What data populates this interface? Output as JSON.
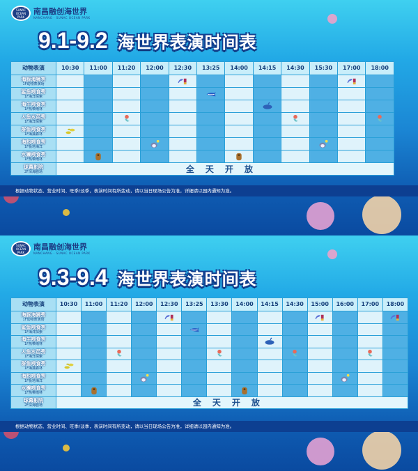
{
  "logo": {
    "cn": "南昌融创海世界",
    "en": "NANCHANG · SUNAC OCEAN PARK",
    "badge": "SUNAC OCEAN PARK"
  },
  "colors": {
    "cell_light": "#dff3fb",
    "cell_blue": "#4fb0e4",
    "title_outline": "#123f8f"
  },
  "header_label": "动物表演",
  "all_day": "全天开放",
  "notice": "根据动物状态、营业时间、旺季/淡季，表演时间有所变动，请以当日现场公告为准，详细请以园内通知为准。",
  "rows": [
    {
      "name": "海豚海狮秀",
      "loc": "1F动物表演场",
      "icon": "dolphin-sealion-icon"
    },
    {
      "name": "鲨鱼喂食秀",
      "loc": "1F海洋探索",
      "icon": "shark-icon"
    },
    {
      "name": "海牛喂食秀",
      "loc": "1F热带雨林",
      "icon": "manatee-icon"
    },
    {
      "name": "人鱼水芭秀",
      "loc": "1F海洋探索",
      "icon": "mermaid-icon"
    },
    {
      "name": "群鱼喂食秀",
      "loc": "1F海藻森林",
      "icon": "fish-school-icon"
    },
    {
      "name": "海豹喂食秀",
      "loc": "1F极地海洋",
      "icon": "seal-icon"
    },
    {
      "name": "水獭喂食秀",
      "loc": "1F热带雨林",
      "icon": "otter-icon"
    },
    {
      "name": "球幕影院",
      "loc": "2F深海剧场",
      "icon": ""
    }
  ],
  "posters": [
    {
      "date": "9.1-9.2",
      "title": "海世界表演时间表",
      "times": [
        "10:30",
        "11:00",
        "11:20",
        "12:00",
        "12:30",
        "13:25",
        "14:00",
        "14:15",
        "14:30",
        "15:30",
        "17:00",
        "18:00"
      ],
      "shows": [
        [
          "12:30",
          "17:00"
        ],
        [
          "13:25"
        ],
        [
          "14:15"
        ],
        [
          "11:20",
          "14:30",
          "18:00"
        ],
        [
          "10:30"
        ],
        [
          "12:00",
          "15:30"
        ],
        [
          "11:00",
          "14:00"
        ]
      ]
    },
    {
      "date": "9.3-9.4",
      "title": "海世界表演时间表",
      "times": [
        "10:30",
        "11:00",
        "11:20",
        "12:00",
        "12:30",
        "13:25",
        "13:30",
        "14:00",
        "14:15",
        "14:30",
        "15:00",
        "16:00",
        "17:00",
        "18:00"
      ],
      "shows": [
        [
          "12:30",
          "15:00",
          "18:00"
        ],
        [
          "13:25"
        ],
        [
          "14:15"
        ],
        [
          "11:20",
          "13:30",
          "14:30",
          "17:00"
        ],
        [
          "10:30"
        ],
        [
          "12:00",
          "16:00"
        ],
        [
          "11:00",
          "14:00"
        ]
      ]
    }
  ]
}
